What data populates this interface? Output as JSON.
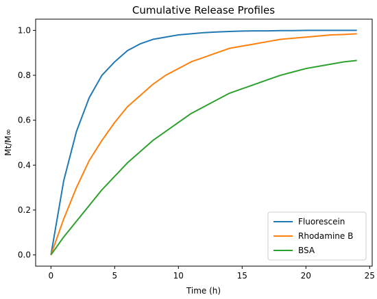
{
  "chart_data": {
    "type": "line",
    "title": "Cumulative Release Profiles",
    "xlabel": "Time (h)",
    "ylabel": "Mt/M∞",
    "xlim": [
      -1.2,
      25.2
    ],
    "ylim": [
      -0.05,
      1.05
    ],
    "xticks": [
      0,
      5,
      10,
      15,
      20,
      25
    ],
    "yticks": [
      0.0,
      0.2,
      0.4,
      0.6,
      0.8,
      1.0
    ],
    "xtick_labels": [
      "0",
      "5",
      "10",
      "15",
      "20",
      "25"
    ],
    "ytick_labels": [
      "0.0",
      "0.2",
      "0.4",
      "0.6",
      "0.8",
      "1.0"
    ],
    "grid": false,
    "legend_position": "lower-right",
    "x": [
      0,
      1,
      2,
      3,
      4,
      5,
      6,
      7,
      8,
      9,
      10,
      11,
      12,
      13,
      14,
      15,
      16,
      17,
      18,
      19,
      20,
      21,
      22,
      23,
      24
    ],
    "series": [
      {
        "name": "Fluorescein",
        "color": "#1f77b4",
        "values": [
          0.0,
          0.33,
          0.55,
          0.7,
          0.8,
          0.86,
          0.91,
          0.94,
          0.96,
          0.97,
          0.98,
          0.985,
          0.99,
          0.993,
          0.995,
          0.997,
          0.998,
          0.998,
          0.999,
          0.999,
          1.0,
          1.0,
          1.0,
          1.0,
          1.0
        ]
      },
      {
        "name": "Rhodamine B",
        "color": "#ff7f0e",
        "values": [
          0.0,
          0.16,
          0.3,
          0.42,
          0.51,
          0.59,
          0.66,
          0.71,
          0.76,
          0.8,
          0.83,
          0.86,
          0.88,
          0.9,
          0.92,
          0.93,
          0.94,
          0.95,
          0.96,
          0.965,
          0.97,
          0.975,
          0.98,
          0.982,
          0.985
        ]
      },
      {
        "name": "BSA",
        "color": "#2ca02c",
        "values": [
          0.0,
          0.08,
          0.15,
          0.22,
          0.29,
          0.35,
          0.41,
          0.46,
          0.51,
          0.55,
          0.59,
          0.63,
          0.66,
          0.69,
          0.72,
          0.74,
          0.76,
          0.78,
          0.8,
          0.815,
          0.83,
          0.84,
          0.85,
          0.86,
          0.866
        ]
      }
    ]
  }
}
